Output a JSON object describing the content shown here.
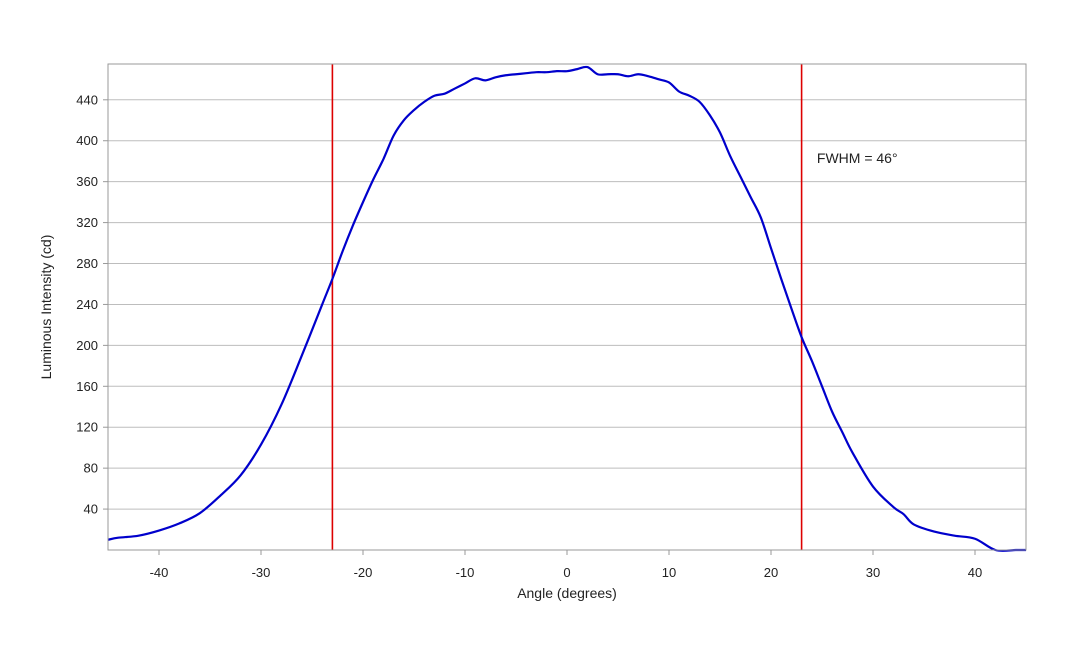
{
  "chart_data": {
    "type": "line",
    "xlabel": "Angle (degrees)",
    "ylabel": "Luminous Intensity (cd)",
    "xlim": [
      -45,
      45
    ],
    "ylim": [
      0,
      475
    ],
    "x_ticks": [
      -40,
      -30,
      -20,
      -10,
      0,
      10,
      20,
      30,
      40
    ],
    "y_ticks": [
      40,
      80,
      120,
      160,
      200,
      240,
      280,
      320,
      360,
      400,
      440
    ],
    "grid": "horizontal",
    "series": [
      {
        "color": "#0000cc",
        "x": [
          -45,
          -44,
          -42,
          -40,
          -38,
          -36,
          -34,
          -32,
          -30,
          -28,
          -26,
          -24,
          -23,
          -22,
          -21,
          -20,
          -19,
          -18,
          -17,
          -16,
          -15,
          -14,
          -13,
          -12,
          -11,
          -10,
          -9,
          -8,
          -7,
          -6,
          -5,
          -4,
          -3,
          -2,
          -1,
          0,
          1,
          2,
          3,
          4,
          5,
          6,
          7,
          8,
          9,
          10,
          11,
          12,
          13,
          14,
          15,
          16,
          17,
          18,
          19,
          20,
          21,
          22,
          23,
          24,
          25,
          26,
          27,
          28,
          30,
          32,
          33,
          34,
          36,
          38,
          40,
          42,
          44,
          45
        ],
        "y": [
          10,
          12,
          14,
          19,
          26,
          36,
          53,
          73,
          103,
          142,
          190,
          240,
          265,
          292,
          317,
          340,
          362,
          382,
          405,
          420,
          430,
          438,
          444,
          446,
          451,
          456,
          461,
          459,
          462,
          464,
          465,
          466,
          467,
          467,
          468,
          468,
          470,
          472,
          465,
          465,
          465,
          463,
          465,
          463,
          460,
          457,
          448,
          444,
          438,
          425,
          408,
          385,
          365,
          345,
          325,
          295,
          265,
          236,
          208,
          185,
          160,
          135,
          115,
          95,
          62,
          42,
          35,
          25,
          18,
          14,
          11,
          0,
          0,
          0
        ]
      }
    ],
    "reference_lines": [
      {
        "axis": "x",
        "value": -23,
        "color": "#dd0000"
      },
      {
        "axis": "x",
        "value": 23,
        "color": "#dd0000"
      }
    ],
    "annotations": [
      {
        "text": "FWHM = 46°",
        "x": 24.5,
        "y": 378
      }
    ]
  }
}
